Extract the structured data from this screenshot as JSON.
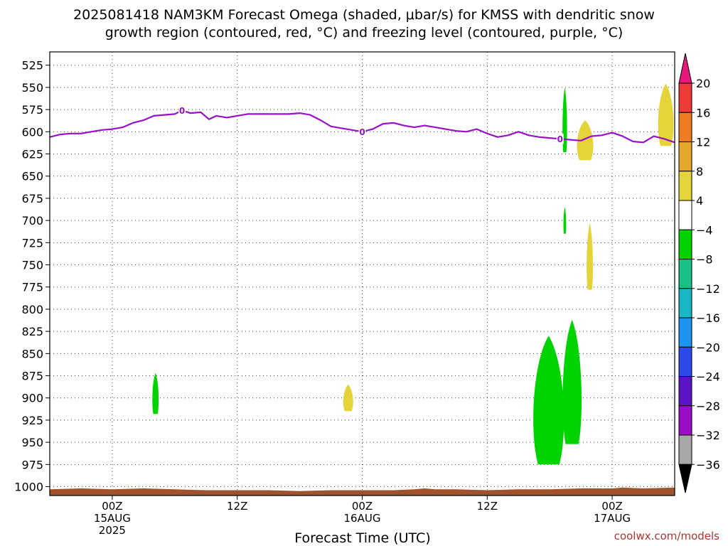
{
  "title_lines": [
    "2025081418 NAM3KM Forecast Omega (shaded, μbar/s) for KMSS with dendritic snow",
    "growth region (contoured, red, °C) and freezing level (contoured, purple, °C)"
  ],
  "xlabel": "Forecast Time (UTC)",
  "credit": "coolwx.com/models",
  "chart_data": {
    "type": "contour-shaded time-height section",
    "x_unit": "hours since 2025-08-14 18Z",
    "xlim": [
      0,
      60
    ],
    "y_unit": "hPa",
    "ylim": [
      1010,
      510
    ],
    "y_ticks": [
      525,
      550,
      575,
      600,
      625,
      650,
      675,
      700,
      725,
      750,
      775,
      800,
      825,
      850,
      875,
      900,
      925,
      950,
      975,
      1000
    ],
    "x_ticks": [
      {
        "x": 6,
        "lines": [
          "00Z",
          "15AUG",
          "2025"
        ]
      },
      {
        "x": 18,
        "lines": [
          "12Z"
        ]
      },
      {
        "x": 30,
        "lines": [
          "00Z",
          "16AUG"
        ]
      },
      {
        "x": 42,
        "lines": [
          "12Z"
        ]
      },
      {
        "x": 54,
        "lines": [
          "00Z",
          "17AUG"
        ]
      }
    ],
    "grid": true,
    "colorbar": {
      "ticks": [
        "20",
        "16",
        "12",
        "8",
        "4",
        "−4",
        "−8",
        "−12",
        "−16",
        "−20",
        "−24",
        "−28",
        "−32",
        "−36"
      ],
      "bands": [
        "#ef3a3a",
        "#f07c22",
        "#e3a72a",
        "#e4d43a",
        "#ffffff",
        "#00d400",
        "#1bbf88",
        "#17b7c4",
        "#1d94ef",
        "#2a49e6",
        "#5c13c4",
        "#9b0ec6",
        "#a8a8a8"
      ],
      "top_arrow_color": "#e8177b",
      "bottom_arrow_color": "#000000"
    },
    "freezing_level": {
      "color": "#9a0fc8",
      "label": "0",
      "label_x": [
        12.7,
        30.0,
        49.0
      ],
      "x": [
        0,
        1,
        2,
        3,
        4,
        5,
        6,
        7,
        8,
        9,
        10,
        11,
        12,
        12.7,
        13.5,
        14.5,
        15.3,
        16,
        17,
        18,
        19,
        20,
        21,
        22,
        23,
        24,
        25,
        26,
        27,
        28,
        29,
        30,
        31,
        32,
        33,
        34,
        35,
        36,
        37,
        38,
        39,
        40,
        41,
        42,
        43,
        44,
        45,
        46,
        47,
        48,
        49,
        50,
        51,
        52,
        53,
        54,
        55,
        56,
        57,
        58,
        59,
        60
      ],
      "p": [
        606,
        603,
        602,
        602,
        600,
        598,
        597,
        595,
        590,
        587,
        582,
        581,
        580,
        576,
        579,
        578,
        586,
        582,
        584,
        582,
        580,
        580,
        580,
        580,
        580,
        579,
        581,
        587,
        594,
        596,
        598,
        600,
        597,
        591,
        590,
        593,
        595,
        593,
        595,
        597,
        599,
        600,
        597,
        602,
        606,
        604,
        600,
        604,
        606,
        607,
        608,
        609,
        610,
        605,
        604,
        601,
        605,
        611,
        612,
        605,
        608,
        612
      ]
    },
    "omega_regions": [
      {
        "band": "-4 to -8",
        "color": "#00d400",
        "x": [
          9.8,
          10.5
        ],
        "p": [
          872,
          918
        ]
      },
      {
        "band": "4 to 8",
        "color": "#e4d43a",
        "x": [
          28.1,
          29.2
        ],
        "p": [
          885,
          915
        ]
      },
      {
        "band": "-4 to -8",
        "color": "#00d400",
        "x": [
          46.2,
          49.6
        ],
        "p": [
          830,
          975
        ]
      },
      {
        "band": "-4 to -8",
        "color": "#00d400",
        "x": [
          49.1,
          51.2
        ],
        "p": [
          812,
          952
        ]
      },
      {
        "band": "-4 to -8",
        "color": "#00d400",
        "x": [
          49.2,
          49.7
        ],
        "p": [
          550,
          623
        ]
      },
      {
        "band": "-4 to -8",
        "color": "#00d400",
        "x": [
          49.3,
          49.6
        ],
        "p": [
          685,
          715
        ]
      },
      {
        "band": "4 to 8",
        "color": "#e4d43a",
        "x": [
          50.5,
          52.3
        ],
        "p": [
          587,
          632
        ]
      },
      {
        "band": "4 to 8",
        "color": "#e4d43a",
        "x": [
          51.5,
          52.2
        ],
        "p": [
          703,
          778
        ]
      },
      {
        "band": "4 to 8",
        "color": "#e4d43a",
        "x": [
          58.3,
          60
        ],
        "p": [
          546,
          616
        ]
      }
    ],
    "terrain": {
      "color": "#a0522d",
      "x": [
        0,
        3,
        6,
        9,
        12,
        15,
        18,
        21,
        24,
        27,
        30,
        33,
        35,
        36,
        37,
        39,
        42,
        45,
        48,
        51,
        54,
        55,
        57,
        60
      ],
      "p": [
        1003,
        1002,
        1003,
        1002,
        1003,
        1004,
        1004,
        1004,
        1005,
        1004,
        1004,
        1004,
        1003,
        1002,
        1003,
        1003,
        1004,
        1003,
        1003,
        1002,
        1002,
        1001,
        1002,
        1001
      ]
    }
  }
}
